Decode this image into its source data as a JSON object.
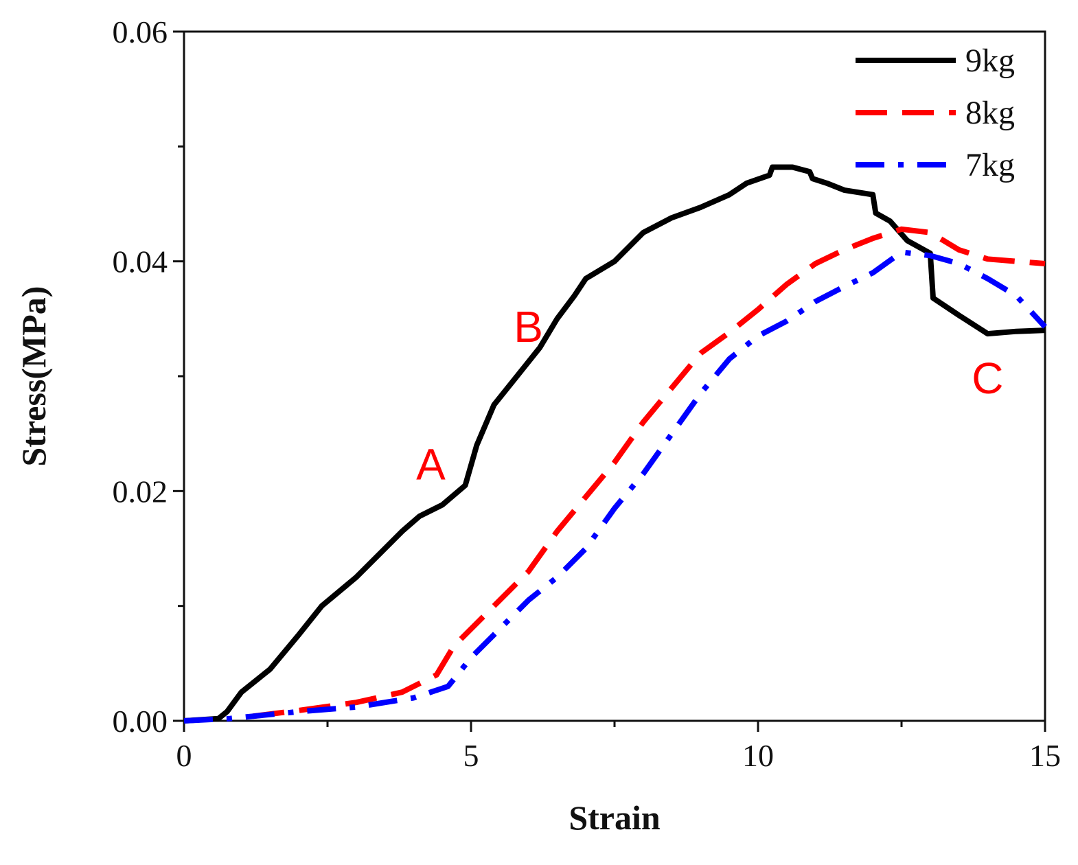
{
  "chart_data": {
    "type": "line",
    "title": "",
    "xlabel": "Strain",
    "ylabel": "Stress(MPa)",
    "xlim": [
      0,
      15
    ],
    "ylim": [
      0,
      0.06
    ],
    "xticks": [
      0,
      5,
      10,
      15
    ],
    "xtick_labels": [
      "0",
      "5",
      "10",
      "15"
    ],
    "yticks": [
      0,
      0.02,
      0.04,
      0.06
    ],
    "ytick_labels": [
      "0.00",
      "0.02",
      "0.04",
      "0.06"
    ],
    "grid": false,
    "legend_position": "top-right",
    "series": [
      {
        "name": "9kg",
        "color": "#000000",
        "style": "solid",
        "x": [
          0,
          0.6,
          0.75,
          1.0,
          1.5,
          2.0,
          2.4,
          3.0,
          3.4,
          3.8,
          4.1,
          4.5,
          4.9,
          5.1,
          5.4,
          5.8,
          6.2,
          6.5,
          6.8,
          7.0,
          7.5,
          8.0,
          8.5,
          9.0,
          9.5,
          9.8,
          10.2,
          10.25,
          10.6,
          10.9,
          10.95,
          11.2,
          11.5,
          12.0,
          12.05,
          12.3,
          12.6,
          13.0,
          13.05,
          13.5,
          14.0,
          14.5,
          15.0
        ],
        "y": [
          0,
          0.0002,
          0.0008,
          0.0025,
          0.0045,
          0.0075,
          0.01,
          0.0125,
          0.0145,
          0.0165,
          0.0178,
          0.0188,
          0.0205,
          0.024,
          0.0275,
          0.03,
          0.0325,
          0.035,
          0.037,
          0.0385,
          0.04,
          0.0425,
          0.0438,
          0.0447,
          0.0458,
          0.0468,
          0.0475,
          0.0482,
          0.0482,
          0.0478,
          0.0472,
          0.0468,
          0.0462,
          0.0458,
          0.0442,
          0.0435,
          0.0418,
          0.0407,
          0.0368,
          0.0353,
          0.0337,
          0.0339,
          0.034
        ]
      },
      {
        "name": "8kg",
        "color": "#ff0000",
        "style": "dashed",
        "x": [
          1.2,
          2.0,
          3.0,
          3.8,
          4.4,
          4.7,
          5.2,
          6.0,
          6.5,
          7.0,
          7.5,
          8.0,
          8.5,
          9.0,
          9.5,
          10.0,
          10.5,
          11.0,
          11.5,
          12.0,
          12.5,
          13.0,
          13.5,
          14.0,
          14.5,
          15.0
        ],
        "y": [
          0.0004,
          0.0009,
          0.0016,
          0.0025,
          0.004,
          0.0065,
          0.009,
          0.013,
          0.0165,
          0.0195,
          0.0225,
          0.026,
          0.029,
          0.032,
          0.0338,
          0.0358,
          0.038,
          0.0398,
          0.041,
          0.042,
          0.0428,
          0.0425,
          0.041,
          0.0402,
          0.04,
          0.0398
        ]
      },
      {
        "name": "7kg",
        "color": "#0000ff",
        "style": "dashdot",
        "x": [
          0,
          0.8,
          1.2,
          2.0,
          3.0,
          4.0,
          4.6,
          5.0,
          6.0,
          6.5,
          7.0,
          7.5,
          8.0,
          8.5,
          9.0,
          9.5,
          10.0,
          10.5,
          11.0,
          11.5,
          12.0,
          12.5,
          13.0,
          13.5,
          14.0,
          14.5,
          15.0
        ],
        "y": [
          0,
          0.0002,
          0.0004,
          0.0008,
          0.0012,
          0.002,
          0.003,
          0.0055,
          0.0105,
          0.0125,
          0.015,
          0.0185,
          0.0215,
          0.025,
          0.0285,
          0.0315,
          0.0335,
          0.0348,
          0.0365,
          0.0378,
          0.039,
          0.0408,
          0.0405,
          0.0398,
          0.0385,
          0.037,
          0.0343
        ]
      }
    ],
    "annotations": [
      {
        "text": "A",
        "x": 4.3,
        "y": 0.021,
        "color": "#ff0000"
      },
      {
        "text": "B",
        "x": 6.0,
        "y": 0.033,
        "color": "#ff0000"
      },
      {
        "text": "C",
        "x": 14.0,
        "y": 0.0285,
        "color": "#ff0000"
      }
    ]
  }
}
